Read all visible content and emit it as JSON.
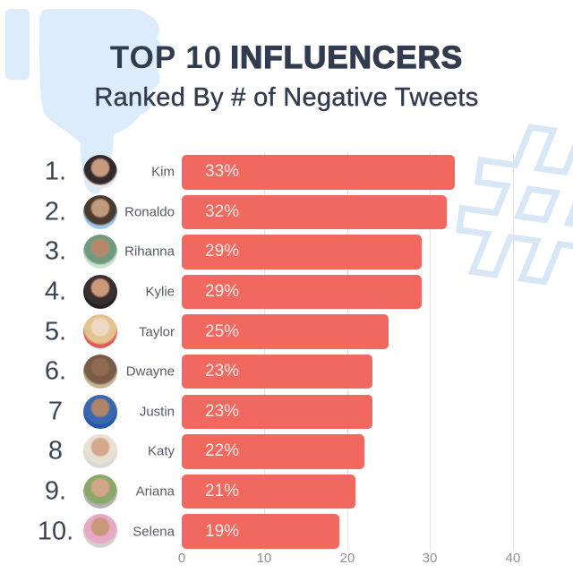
{
  "header": {
    "title_prefix": "TOP 10",
    "title_emphasis": "INFLUENCERS",
    "subtitle": "Ranked By # of Negative Tweets"
  },
  "decorations": {
    "thumbs_down_color": "#ddecfa",
    "hashtag_outline_color": "#d8e7f5",
    "hashtag_glyph": "#"
  },
  "colors": {
    "background": "#ffffff",
    "title_text": "#333b4e",
    "rank_text": "#3d4452",
    "name_text": "#565b66",
    "bar_fill": "#f1695e",
    "bar_label_text": "#fcedeb",
    "gridline": "#e2e3e5",
    "axis_label_text": "#8f9299"
  },
  "chart_data": {
    "type": "bar",
    "orientation": "horizontal",
    "title": "TOP 10 INFLUENCERS",
    "subtitle": "Ranked By # of Negative Tweets",
    "xlabel": "",
    "ylabel": "",
    "xlim": [
      0,
      44
    ],
    "grid": true,
    "xticks": [
      "0",
      "10",
      "20",
      "30",
      "40"
    ],
    "value_unit": "%",
    "rows": [
      {
        "rank": "1.",
        "name": "Kim",
        "value": 33,
        "label": "33%",
        "avatar_colors": [
          "#c59a7e",
          "#342a2c",
          "#e9e7e8"
        ]
      },
      {
        "rank": "2.",
        "name": "Ronaldo",
        "value": 32,
        "label": "32%",
        "avatar_colors": [
          "#c09a7d",
          "#4a3a30",
          "#9fc6e8"
        ]
      },
      {
        "rank": "3.",
        "name": "Rihanna",
        "value": 29,
        "label": "29%",
        "avatar_colors": [
          "#b5886b",
          "#6f9c80",
          "#cfe3d2"
        ]
      },
      {
        "rank": "4.",
        "name": "Kylie",
        "value": 29,
        "label": "29%",
        "avatar_colors": [
          "#cb9878",
          "#3a2e30",
          "#262023"
        ]
      },
      {
        "rank": "5.",
        "name": "Taylor",
        "value": 25,
        "label": "25%",
        "avatar_colors": [
          "#eed8c4",
          "#e3c48f",
          "#e25a57"
        ]
      },
      {
        "rank": "6.",
        "name": "Dwayne",
        "value": 23,
        "label": "23%",
        "avatar_colors": [
          "#8d6a50",
          "#7a5c46",
          "#c6b694"
        ]
      },
      {
        "rank": "7",
        "name": "Justin",
        "value": 23,
        "label": "23%",
        "avatar_colors": [
          "#b08468",
          "#3a68b0",
          "#2456a8"
        ]
      },
      {
        "rank": "8",
        "name": "Katy",
        "value": 22,
        "label": "22%",
        "avatar_colors": [
          "#d4a88c",
          "#e8e0d0",
          "#d9d9d7"
        ]
      },
      {
        "rank": "9.",
        "name": "Ariana",
        "value": 21,
        "label": "21%",
        "avatar_colors": [
          "#d0a888",
          "#8aa86a",
          "#b4b4b2"
        ]
      },
      {
        "rank": "10.",
        "name": "Selena",
        "value": 19,
        "label": "19%",
        "avatar_colors": [
          "#c89878",
          "#e8a8c8",
          "#d6d0cc"
        ]
      }
    ]
  }
}
